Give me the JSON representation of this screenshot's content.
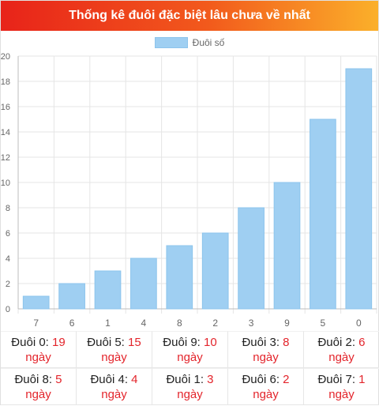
{
  "header": {
    "title": "Thống kê đuôi đặc biệt lâu chưa về nhất"
  },
  "colors": {
    "bar": "#9fcff2",
    "bar_border": "#8cc4ec",
    "accent_red": "#e3242b"
  },
  "chart_data": {
    "type": "bar",
    "categories": [
      "7",
      "6",
      "1",
      "4",
      "8",
      "2",
      "3",
      "9",
      "5",
      "0"
    ],
    "series": [
      {
        "name": "Đuôi số",
        "values": [
          1,
          2,
          3,
          4,
          5,
          6,
          8,
          10,
          15,
          19
        ]
      }
    ],
    "ylim": [
      0,
      20
    ],
    "yticks": [
      "0",
      "2",
      "4",
      "6",
      "8",
      "10",
      "12",
      "14",
      "16",
      "18",
      "20"
    ],
    "grid": true,
    "legend": "top-center"
  },
  "stats": [
    {
      "label": "Đuôi 0: ",
      "value": "19",
      "unit": "ngày"
    },
    {
      "label": "Đuôi 5: ",
      "value": "15",
      "unit": "ngày"
    },
    {
      "label": "Đuôi 9: ",
      "value": "10",
      "unit": "ngày"
    },
    {
      "label": "Đuôi 3: ",
      "value": "8",
      "unit": "ngày"
    },
    {
      "label": "Đuôi 2: ",
      "value": "6",
      "unit": "ngày"
    },
    {
      "label": "Đuôi 8: ",
      "value": "5",
      "unit": "ngày"
    },
    {
      "label": "Đuôi 4: ",
      "value": "4",
      "unit": "ngày"
    },
    {
      "label": "Đuôi 1: ",
      "value": "3",
      "unit": "ngày"
    },
    {
      "label": "Đuôi 6: ",
      "value": "2",
      "unit": "ngày"
    },
    {
      "label": "Đuôi 7: ",
      "value": "1",
      "unit": "ngày"
    }
  ]
}
